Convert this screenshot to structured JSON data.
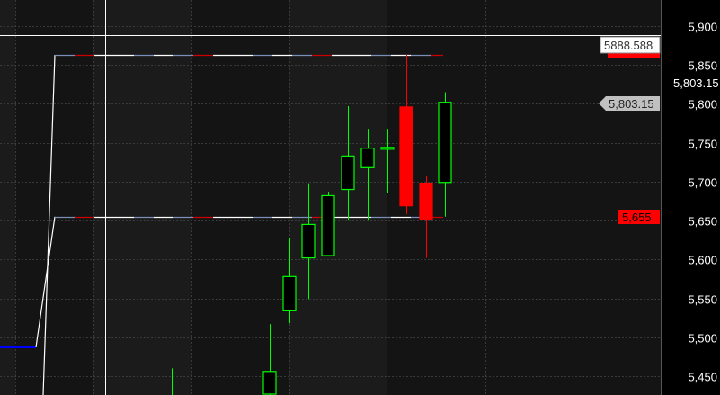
{
  "chart_data": {
    "type": "candlestick",
    "ylim": [
      5430,
      5930
    ],
    "y_ticks": [
      "5,900",
      "5,850",
      "5,800",
      "5,750",
      "5,700",
      "5,650",
      "5,600",
      "5,550",
      "5,500",
      "5,450"
    ],
    "y_tick_values": [
      5900,
      5850,
      5800,
      5750,
      5700,
      5650,
      5600,
      5550,
      5500,
      5450
    ],
    "grid": true,
    "candles": [
      {
        "open": 5420,
        "high": 5460,
        "low": 5400,
        "close": 5432
      },
      {
        "open": 5420,
        "high": 5517,
        "low": 5400,
        "close": 5456
      },
      {
        "open": 5534,
        "high": 5627,
        "low": 5518,
        "close": 5578
      },
      {
        "open": 5602,
        "high": 5698,
        "low": 5549,
        "close": 5645
      },
      {
        "open": 5605,
        "high": 5687,
        "low": 5605,
        "close": 5682
      },
      {
        "open": 5690,
        "high": 5797,
        "low": 5650,
        "close": 5733
      },
      {
        "open": 5718,
        "high": 5768,
        "low": 5650,
        "close": 5743
      },
      {
        "open": 5742,
        "high": 5768,
        "low": 5686,
        "close": 5744
      },
      {
        "open": 5796,
        "high": 5863,
        "low": 5658,
        "close": 5669
      },
      {
        "open": 5698,
        "high": 5707,
        "low": 5602,
        "close": 5652
      },
      {
        "open": 5699,
        "high": 5815,
        "low": 5655,
        "close": 5802
      }
    ],
    "levels": {
      "upper": 5863,
      "lower": 5655,
      "base": 5487
    },
    "crosshair_price": 5888.588,
    "colors": {
      "up": "#00ff00",
      "down": "#ff0000",
      "background": "#141414",
      "band": "#1b1b1b",
      "axis_bg": "#000000",
      "base_line": "#0000ff"
    }
  },
  "axis_labels": {
    "crosshair": "5888.588",
    "last_price_text": "5,803.15",
    "last_price_marker": "5,803.15",
    "level_marker": "5,655"
  }
}
